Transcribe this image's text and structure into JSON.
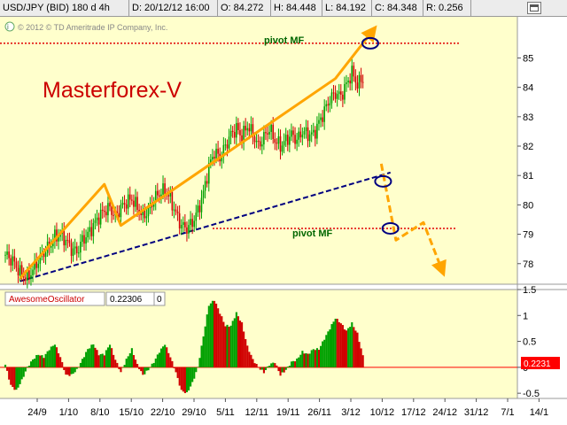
{
  "header": {
    "symbol": "USD/JPY (BID) 180 d 4h",
    "date": "D: 20/12/12 16:00",
    "open": "O: 84.272",
    "high": "H: 84.448",
    "low": "L: 84.192",
    "close": "C: 84.348",
    "range": "R: 0.256"
  },
  "copyright": "© 2012 © TD Ameritrade IP Company, Inc.",
  "watermark": "Masterforex-V",
  "annotations": {
    "pivot_upper": "pivot MF",
    "pivot_lower": "pivot MF"
  },
  "colors": {
    "background": "#ffffcc",
    "up_candle": "#00a000",
    "down_candle": "#d00000",
    "trend_arrow": "#ffa500",
    "support_line": "#000080",
    "pivot_line": "#e00000",
    "watermark": "#cc0000",
    "osc_up": "#00a000",
    "osc_down": "#d00000"
  },
  "chart_data": [
    {
      "type": "candlestick",
      "name": "USD/JPY price",
      "ylim": [
        77.3,
        86.4
      ],
      "y_ticks": [
        "85",
        "84",
        "83",
        "82",
        "81",
        "80",
        "79",
        "78"
      ],
      "x_ticks": [
        "24/9",
        "1/10",
        "8/10",
        "15/10",
        "22/10",
        "29/10",
        "5/11",
        "12/11",
        "19/11",
        "26/11",
        "3/12",
        "10/12",
        "17/12",
        "24/12",
        "31/12",
        "7/1",
        "14/1"
      ],
      "pivot_levels": [
        85.5,
        79.2
      ],
      "close_path": [
        [
          0,
          78.3
        ],
        [
          4,
          78.1
        ],
        [
          8,
          77.7
        ],
        [
          12,
          77.5
        ],
        [
          16,
          77.9
        ],
        [
          20,
          78.3
        ],
        [
          24,
          78.6
        ],
        [
          27,
          78.9
        ],
        [
          30,
          79.0
        ],
        [
          33,
          78.8
        ],
        [
          36,
          78.5
        ],
        [
          39,
          78.4
        ],
        [
          42,
          78.8
        ],
        [
          45,
          79.0
        ],
        [
          48,
          79.3
        ],
        [
          51,
          79.6
        ],
        [
          54,
          79.8
        ],
        [
          57,
          79.9
        ],
        [
          60,
          79.6
        ],
        [
          63,
          79.9
        ],
        [
          66,
          80.1
        ],
        [
          69,
          80.2
        ],
        [
          72,
          79.9
        ],
        [
          75,
          79.6
        ],
        [
          78,
          79.8
        ],
        [
          81,
          80.2
        ],
        [
          84,
          80.4
        ],
        [
          87,
          80.5
        ],
        [
          90,
          80.2
        ],
        [
          93,
          79.7
        ],
        [
          96,
          79.3
        ],
        [
          99,
          79.2
        ],
        [
          102,
          79.4
        ],
        [
          105,
          79.8
        ],
        [
          108,
          80.4
        ],
        [
          111,
          81.3
        ],
        [
          114,
          81.8
        ],
        [
          117,
          81.6
        ],
        [
          120,
          82.0
        ],
        [
          123,
          82.4
        ],
        [
          126,
          82.6
        ],
        [
          129,
          82.3
        ],
        [
          132,
          82.7
        ],
        [
          135,
          82.4
        ],
        [
          138,
          82.0
        ],
        [
          141,
          82.3
        ],
        [
          144,
          82.6
        ],
        [
          147,
          82.2
        ],
        [
          150,
          82.0
        ],
        [
          153,
          82.2
        ],
        [
          156,
          82.4
        ],
        [
          159,
          82.2
        ],
        [
          162,
          82.5
        ],
        [
          165,
          82.4
        ],
        [
          168,
          82.4
        ],
        [
          171,
          82.8
        ],
        [
          174,
          83.2
        ],
        [
          177,
          83.6
        ],
        [
          180,
          83.8
        ],
        [
          183,
          83.7
        ],
        [
          186,
          84.1
        ],
        [
          189,
          84.5
        ],
        [
          192,
          84.1
        ],
        [
          195,
          84.3
        ]
      ],
      "trend_arrow_path": [
        [
          8,
          77.5
        ],
        [
          54,
          80.7
        ],
        [
          63,
          79.3
        ],
        [
          180,
          84.3
        ],
        [
          200,
          85.9
        ]
      ],
      "support_line": [
        [
          8,
          77.4
        ],
        [
          210,
          81.1
        ]
      ],
      "projection_path": [
        [
          205,
          81.4
        ],
        [
          213,
          78.8
        ],
        [
          228,
          79.4
        ],
        [
          238,
          77.8
        ]
      ],
      "markers": [
        [
          199,
          85.5
        ],
        [
          206,
          80.8
        ],
        [
          210,
          79.2
        ]
      ]
    },
    {
      "type": "bar",
      "name": "AwesomeOscillator",
      "label": "AwesomeOscillator",
      "current_value": "0.22306",
      "extra_value": "0",
      "last_value": "0.2231",
      "ylim": [
        -0.6,
        1.5
      ],
      "y_ticks": [
        "1.5",
        "1",
        "0.5",
        "0",
        "-0.5"
      ],
      "values_path": [
        [
          0,
          0.05
        ],
        [
          3,
          -0.35
        ],
        [
          6,
          -0.45
        ],
        [
          9,
          -0.25
        ],
        [
          12,
          0.0
        ],
        [
          15,
          0.15
        ],
        [
          18,
          0.25
        ],
        [
          21,
          0.2
        ],
        [
          24,
          0.35
        ],
        [
          27,
          0.45
        ],
        [
          30,
          0.2
        ],
        [
          33,
          -0.15
        ],
        [
          36,
          -0.15
        ],
        [
          39,
          -0.05
        ],
        [
          42,
          0.15
        ],
        [
          45,
          0.35
        ],
        [
          48,
          0.45
        ],
        [
          51,
          0.25
        ],
        [
          54,
          0.25
        ],
        [
          57,
          0.45
        ],
        [
          60,
          0.15
        ],
        [
          63,
          -0.1
        ],
        [
          66,
          0.15
        ],
        [
          69,
          0.35
        ],
        [
          72,
          0.05
        ],
        [
          75,
          -0.15
        ],
        [
          78,
          -0.05
        ],
        [
          81,
          0.1
        ],
        [
          84,
          0.3
        ],
        [
          87,
          0.45
        ],
        [
          90,
          0.2
        ],
        [
          93,
          -0.1
        ],
        [
          96,
          -0.45
        ],
        [
          99,
          -0.5
        ],
        [
          102,
          -0.3
        ],
        [
          105,
          0.0
        ],
        [
          108,
          0.6
        ],
        [
          111,
          1.2
        ],
        [
          114,
          1.3
        ],
        [
          117,
          1.05
        ],
        [
          120,
          0.8
        ],
        [
          123,
          0.8
        ],
        [
          126,
          1.05
        ],
        [
          129,
          0.85
        ],
        [
          132,
          0.4
        ],
        [
          135,
          0.15
        ],
        [
          138,
          0.0
        ],
        [
          141,
          -0.1
        ],
        [
          144,
          0.05
        ],
        [
          147,
          0.1
        ],
        [
          150,
          -0.15
        ],
        [
          153,
          -0.05
        ],
        [
          156,
          0.1
        ],
        [
          159,
          0.15
        ],
        [
          162,
          0.3
        ],
        [
          165,
          0.25
        ],
        [
          168,
          0.35
        ],
        [
          171,
          0.35
        ],
        [
          174,
          0.55
        ],
        [
          177,
          0.75
        ],
        [
          180,
          0.95
        ],
        [
          183,
          0.85
        ],
        [
          186,
          0.7
        ],
        [
          189,
          0.85
        ],
        [
          192,
          0.65
        ],
        [
          195,
          0.22
        ]
      ]
    }
  ]
}
